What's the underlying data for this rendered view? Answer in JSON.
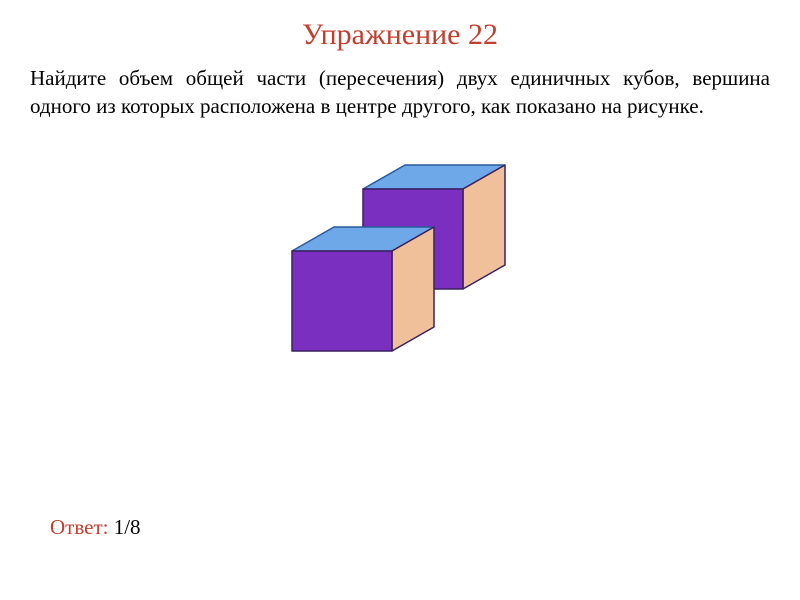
{
  "title": "Упражнение 22",
  "problem": "Найдите объем общей части (пересечения) двух единичных кубов, вершина одного из которых расположена в центре другого, как показано на рисунке.",
  "answer": {
    "label": "Ответ:",
    "value": "1/8"
  },
  "diagram": {
    "type": "isometric-cubes",
    "colors": {
      "top_face": "#6fa8e8",
      "front_face": "#7a2fc0",
      "side_face": "#f0c09a",
      "edge_stroke": "#3a2060",
      "edge_stroke_light": "#2a5a9a"
    },
    "stroke_width": 1.5
  }
}
